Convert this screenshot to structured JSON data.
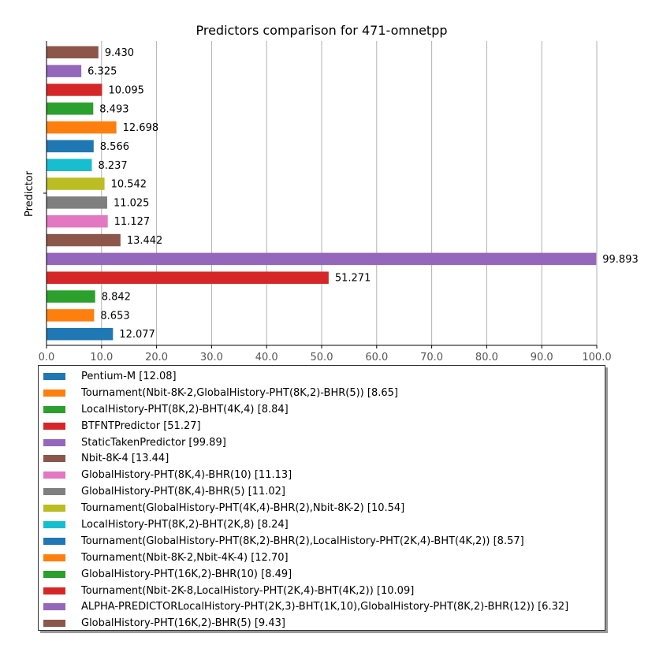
{
  "chart_data": {
    "type": "bar",
    "orientation": "horizontal",
    "title": "Predictors comparison for 471-omnetpp",
    "ylabel": "Predictor",
    "xlabel": "",
    "xlim": [
      0,
      100
    ],
    "xticks": [
      "0.0",
      "10.0",
      "20.0",
      "30.0",
      "40.0",
      "50.0",
      "60.0",
      "70.0",
      "80.0",
      "90.0",
      "100.0"
    ],
    "grid": "vertical",
    "legend_placement": "below",
    "series": [
      {
        "legend": "Pentium-M [12.08]",
        "value": 12.077,
        "label": "12.077",
        "color": "#1f77b4"
      },
      {
        "legend": "Tournament(Nbit-8K-2,GlobalHistory-PHT(8K,2)-BHR(5)) [8.65]",
        "value": 8.653,
        "label": "8.653",
        "color": "#ff7f0e"
      },
      {
        "legend": "LocalHistory-PHT(8K,2)-BHT(4K,4) [8.84]",
        "value": 8.842,
        "label": "8.842",
        "color": "#2ca02c"
      },
      {
        "legend": "BTFNTPredictor [51.27]",
        "value": 51.271,
        "label": "51.271",
        "color": "#d62728"
      },
      {
        "legend": "StaticTakenPredictor [99.89]",
        "value": 99.893,
        "label": "99.893",
        "color": "#9467bd"
      },
      {
        "legend": "Nbit-8K-4 [13.44]",
        "value": 13.442,
        "label": "13.442",
        "color": "#8c564b"
      },
      {
        "legend": "GlobalHistory-PHT(8K,4)-BHR(10) [11.13]",
        "value": 11.127,
        "label": "11.127",
        "color": "#e377c2"
      },
      {
        "legend": "GlobalHistory-PHT(8K,4)-BHR(5) [11.02]",
        "value": 11.025,
        "label": "11.025",
        "color": "#7f7f7f"
      },
      {
        "legend": "Tournament(GlobalHistory-PHT(4K,4)-BHR(2),Nbit-8K-2) [10.54]",
        "value": 10.542,
        "label": "10.542",
        "color": "#bcbd22"
      },
      {
        "legend": "LocalHistory-PHT(8K,2)-BHT(2K,8) [8.24]",
        "value": 8.237,
        "label": "8.237",
        "color": "#17becf"
      },
      {
        "legend": "Tournament(GlobalHistory-PHT(8K,2)-BHR(2),LocalHistory-PHT(2K,4)-BHT(4K,2)) [8.57]",
        "value": 8.566,
        "label": "8.566",
        "color": "#1f77b4"
      },
      {
        "legend": "Tournament(Nbit-8K-2,Nbit-4K-4) [12.70]",
        "value": 12.698,
        "label": "12.698",
        "color": "#ff7f0e"
      },
      {
        "legend": "GlobalHistory-PHT(16K,2)-BHR(10) [8.49]",
        "value": 8.493,
        "label": "8.493",
        "color": "#2ca02c"
      },
      {
        "legend": "Tournament(Nbit-2K-8,LocalHistory-PHT(2K,4)-BHT(4K,2)) [10.09]",
        "value": 10.095,
        "label": "10.095",
        "color": "#d62728"
      },
      {
        "legend": "ALPHA-PREDICTORLocalHistory-PHT(2K,3)-BHT(1K,10),GlobalHistory-PHT(8K,2)-BHR(12)) [6.32]",
        "value": 6.325,
        "label": "6.325",
        "color": "#9467bd"
      },
      {
        "legend": "GlobalHistory-PHT(16K,2)-BHR(5) [9.43]",
        "value": 9.43,
        "label": "9.430",
        "color": "#8c564b"
      }
    ]
  }
}
